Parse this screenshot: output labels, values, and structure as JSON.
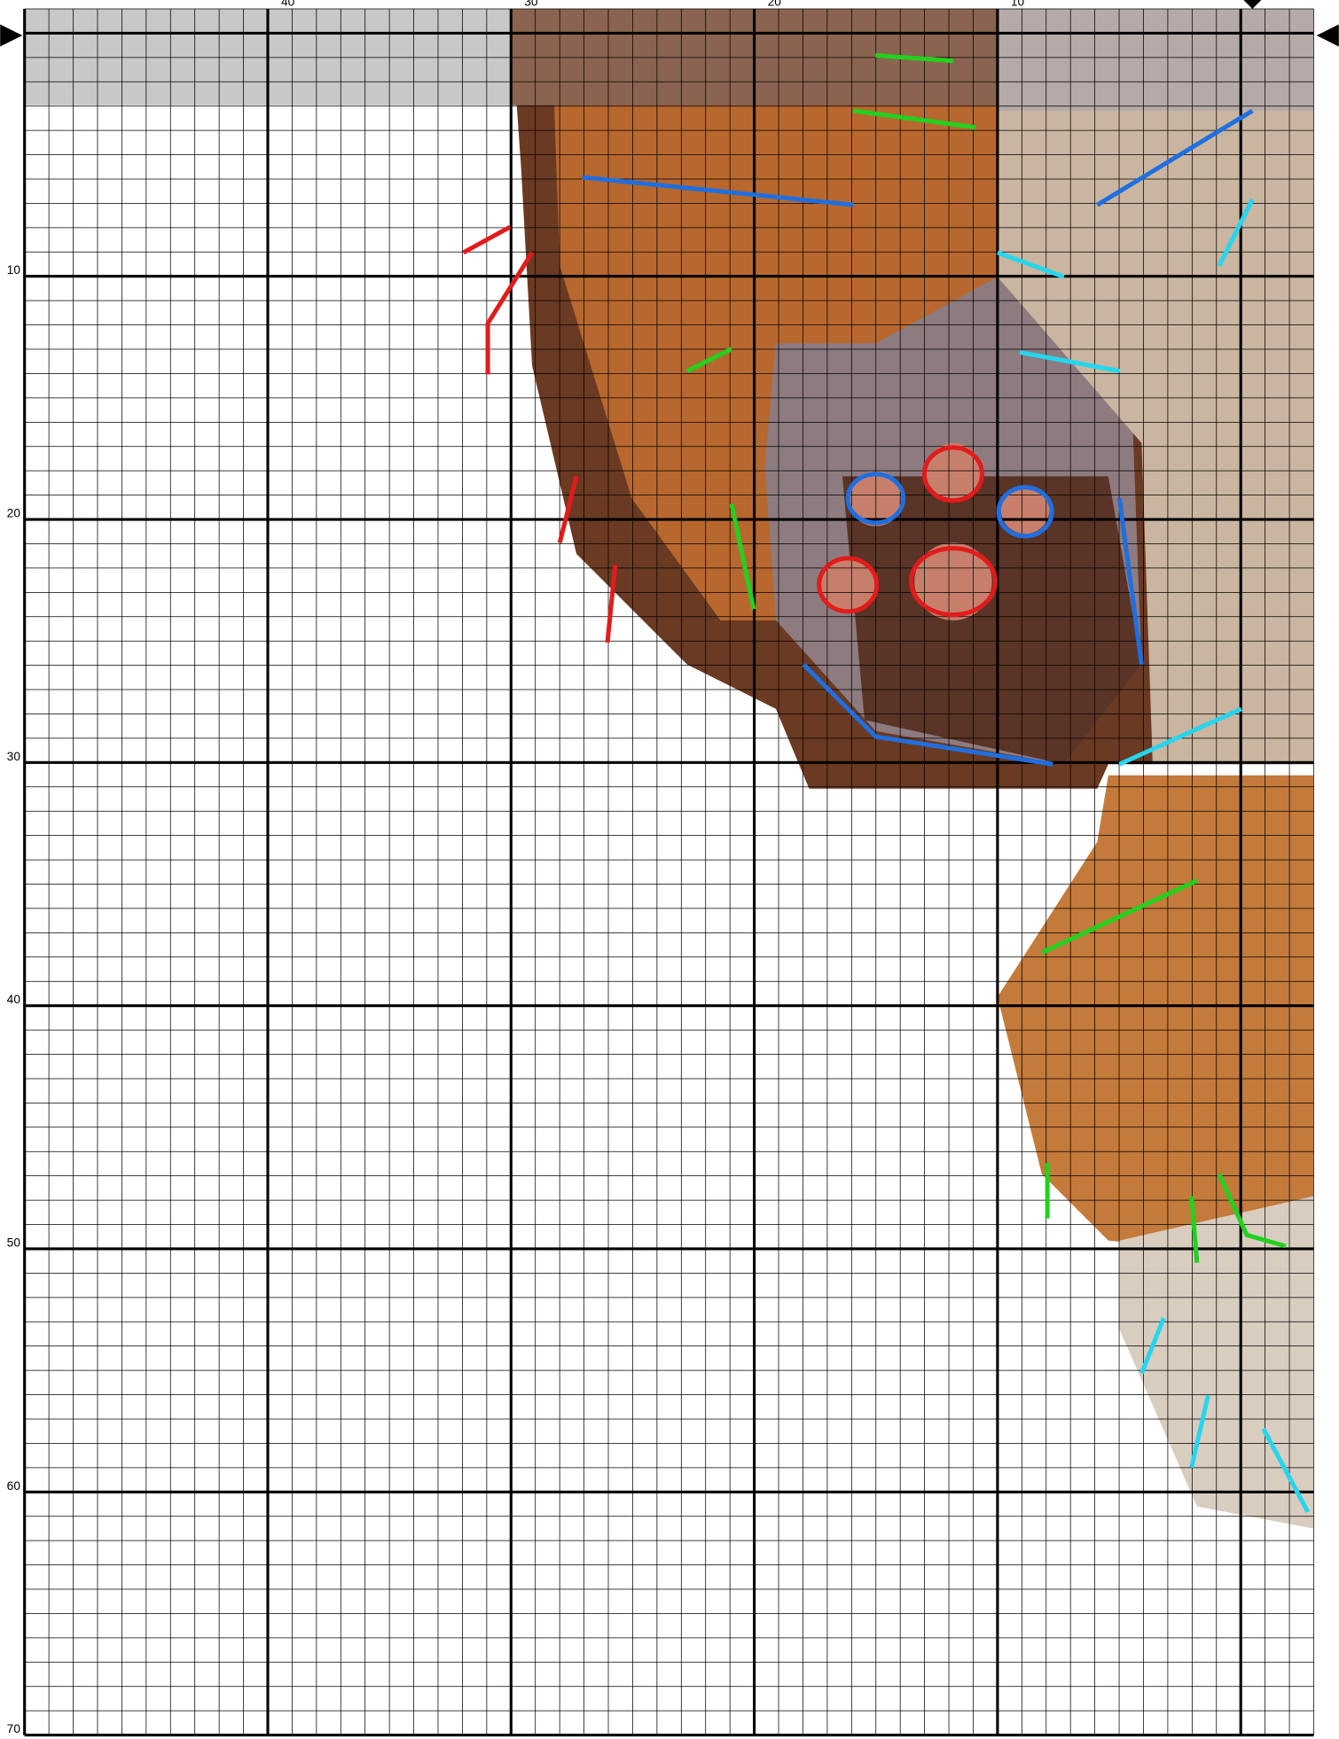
{
  "chart_data": {
    "type": "stitch-grid",
    "column_labels": [
      "40",
      "30",
      "20",
      "10"
    ],
    "row_labels": [
      "10",
      "20",
      "30",
      "40",
      "50",
      "60",
      "70"
    ]
  }
}
